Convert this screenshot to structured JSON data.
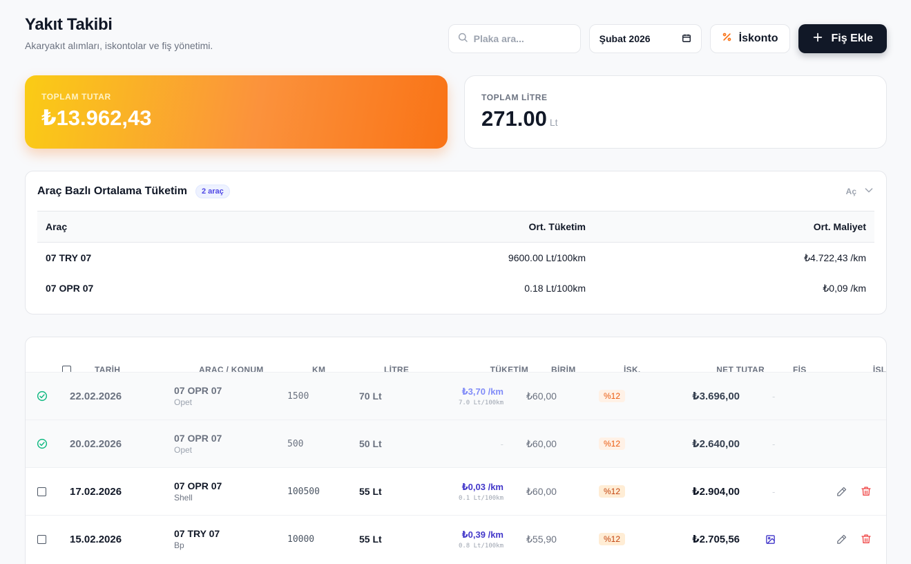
{
  "header": {
    "title": "Yakıt Takibi",
    "subtitle": "Akaryakıt alımları, iskontolar ve fiş yönetimi."
  },
  "toolbar": {
    "search_placeholder": "Plaka ara...",
    "month_value": "Şubat 2026",
    "discount_label": "İskonto",
    "add_receipt_label": "Fiş Ekle"
  },
  "summary": {
    "total_amount_label": "TOPLAM TUTAR",
    "total_amount_value": "₺13.962,43",
    "total_litre_label": "TOPLAM LİTRE",
    "total_litre_value": "271.00",
    "total_litre_unit": "Lt"
  },
  "averages": {
    "title": "Araç Bazlı Ortalama Tüketim",
    "badge": "2 araç",
    "toggle_label": "Aç",
    "columns": [
      "Araç",
      "Ort. Tüketim",
      "Ort. Maliyet"
    ],
    "rows": [
      {
        "vehicle": "07 TRY 07",
        "consumption": "9600.00 Lt/100km",
        "cost": "₺4.722,43 /km"
      },
      {
        "vehicle": "07 OPR 07",
        "consumption": "0.18 Lt/100km",
        "cost": "₺0,09 /km"
      }
    ]
  },
  "table": {
    "columns": {
      "date": "TARİH",
      "vehicle": "ARAÇ / KONUM",
      "km": "KM",
      "litre": "LİTRE",
      "consumption": "TÜKETİM",
      "unit_price": "BİRİM",
      "discount": "İSK.",
      "net": "NET TUTAR",
      "receipt": "FİŞ",
      "action": "İŞLEM"
    },
    "rows": [
      {
        "date": "22.02.2026",
        "plate": "07 OPR 07",
        "station": "Opet",
        "km": "1500",
        "litre": "70 Lt",
        "cons": "₺3,70 /km",
        "cons_sub": "7.0 Lt/100km",
        "unit": "₺60,00",
        "disc": "%12",
        "net": "₺3.696,00",
        "receipt": "-"
      },
      {
        "date": "20.02.2026",
        "plate": "07 OPR 07",
        "station": "Opet",
        "km": "500",
        "litre": "50 Lt",
        "cons_dash": "-",
        "unit": "₺60,00",
        "disc": "%12",
        "net": "₺2.640,00",
        "receipt": "-"
      },
      {
        "date": "17.02.2026",
        "plate": "07 OPR 07",
        "station": "Shell",
        "km": "100500",
        "litre": "55 Lt",
        "cons": "₺0,03 /km",
        "cons_sub": "0.1 Lt/100km",
        "unit": "₺60,00",
        "disc": "%12",
        "net": "₺2.904,00",
        "receipt": "-"
      },
      {
        "date": "15.02.2026",
        "plate": "07 TRY 07",
        "station": "Bp",
        "km": "10000",
        "litre": "55 Lt",
        "cons": "₺0,39 /km",
        "cons_sub": "0.8 Lt/100km",
        "unit": "₺55,90",
        "disc": "%12",
        "net": "₺2.705,56"
      }
    ]
  },
  "colors": {
    "accent_orange": "#f97316",
    "accent_indigo": "#4338ca",
    "success_green": "#10b981",
    "danger_red": "#ef4444",
    "primary_dark": "#111827"
  },
  "icons": [
    "search-icon",
    "calendar-icon",
    "percent-icon",
    "plus-icon",
    "chevron-down-icon",
    "check-circle-icon",
    "image-icon",
    "edit-icon",
    "trash-icon"
  ]
}
